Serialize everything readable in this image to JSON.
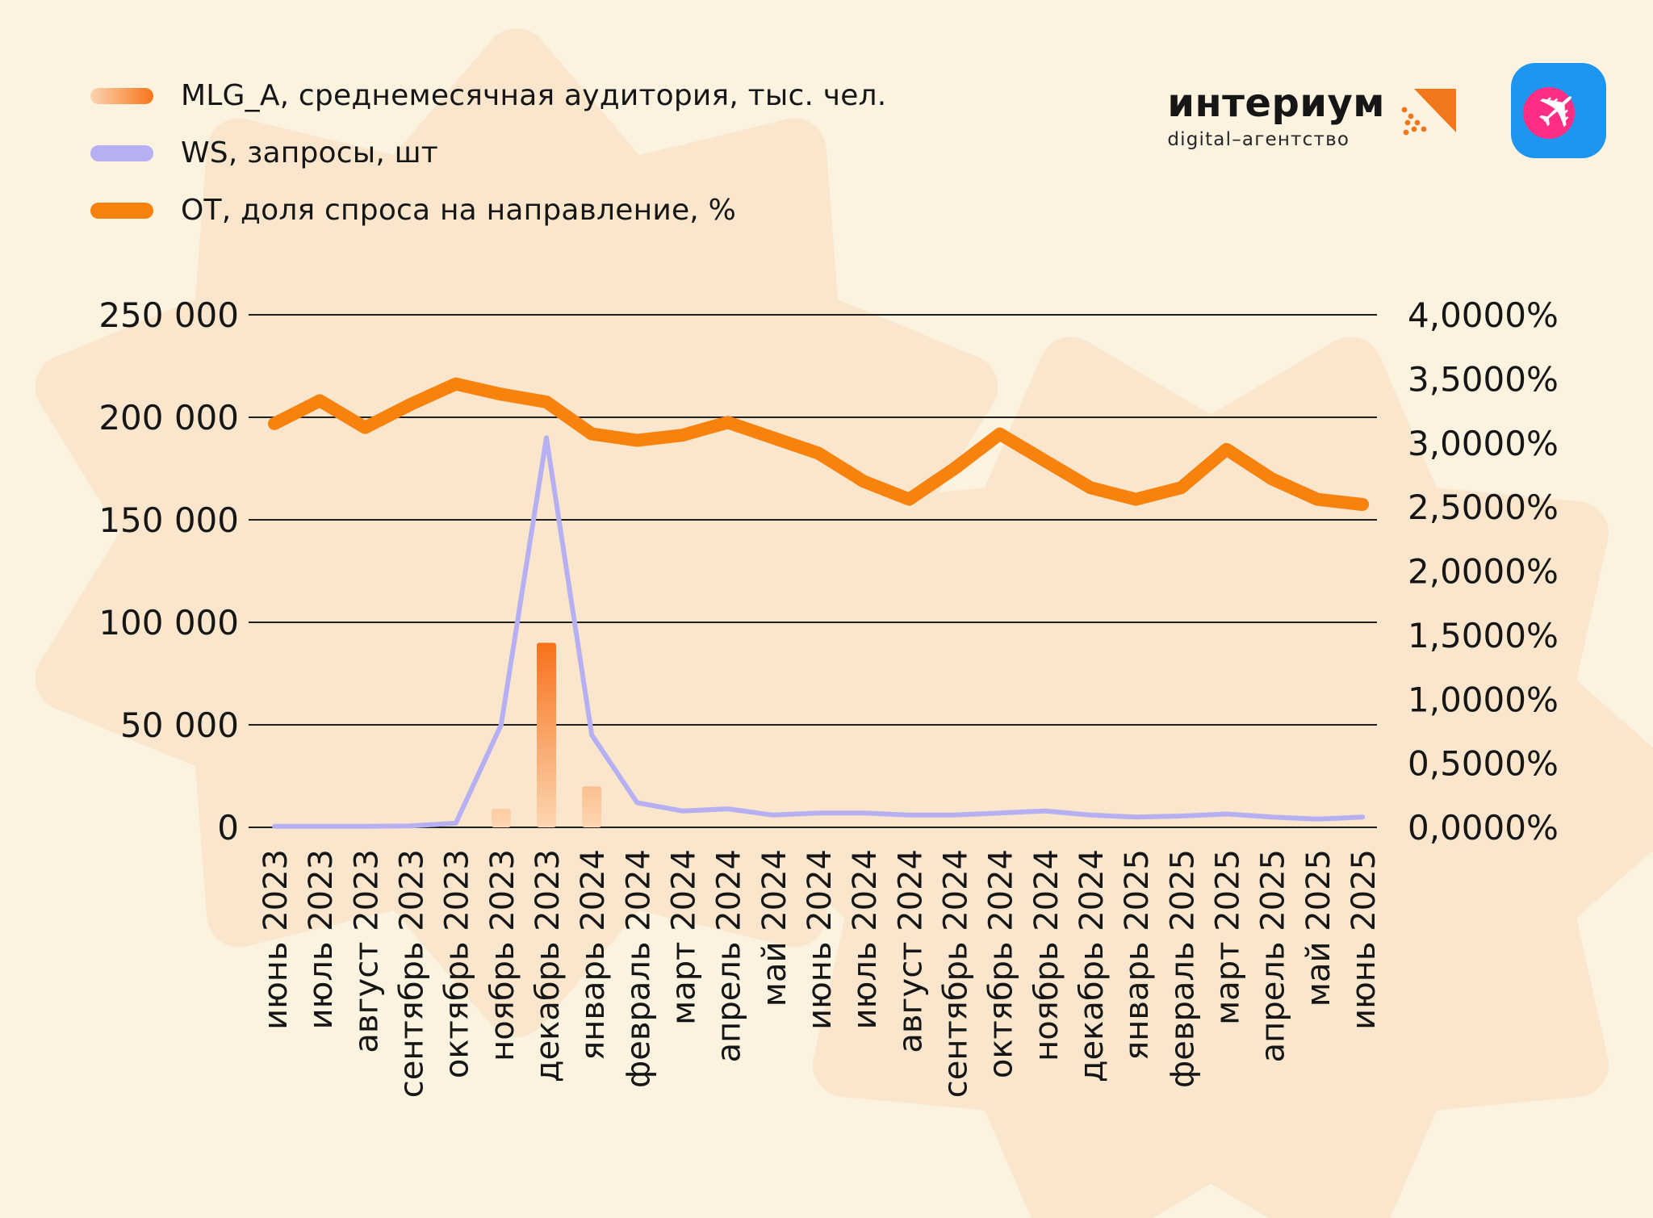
{
  "page": {
    "background": "#fcf2e0",
    "blob_color": "#f9e6cc"
  },
  "header": {
    "legend": [
      {
        "key": "mlg_a",
        "label": "MLG_A, среднемесячная аудитория, тыс. чел.",
        "swatch": "gradient",
        "colors": [
          "#fbd4b2",
          "#f8751a"
        ]
      },
      {
        "key": "ws",
        "label": "WS, запросы, шт",
        "swatch": "solid",
        "colors": [
          "#b6b0f2"
        ]
      },
      {
        "key": "ot",
        "label": "ОТ, доля спроса на направление, %",
        "swatch": "solid",
        "colors": [
          "#f8820e"
        ]
      }
    ],
    "logo": {
      "title": "интериум",
      "subtitle": "digital–агентство",
      "mark_color": "#f2761b"
    },
    "app_icon": {
      "name": "travel-app-icon",
      "background": "#1e96f0",
      "circle": "#ff2e84",
      "plane": "#ffffff"
    }
  },
  "chart_data": {
    "type": "combo",
    "categories": [
      "июнь 2023",
      "июль 2023",
      "август 2023",
      "сентябрь 2023",
      "октябрь 2023",
      "ноябрь 2023",
      "декабрь 2023",
      "январь 2024",
      "февраль 2024",
      "март 2024",
      "апрель 2024",
      "май 2024",
      "июнь 2024",
      "июль 2024",
      "август 2024",
      "сентябрь 2024",
      "октябрь 2024",
      "ноябрь 2024",
      "декабрь 2024",
      "январь 2025",
      "февраль 2025",
      "март 2025",
      "апрель 2025",
      "май 2025",
      "июнь 2025"
    ],
    "series": [
      {
        "name": "MLG_A, среднемесячная аудитория, тыс. чел.",
        "type": "bar",
        "axis": "left",
        "color_top": "#f86c12",
        "color_bottom": "#fcd6b2",
        "values": [
          0,
          0,
          0,
          0,
          0,
          9000,
          90000,
          20000,
          0,
          0,
          0,
          0,
          0,
          0,
          0,
          0,
          0,
          0,
          0,
          0,
          0,
          0,
          0,
          0,
          0
        ]
      },
      {
        "name": "WS, запросы, шт",
        "type": "line",
        "axis": "left",
        "color": "#b6b0f2",
        "values": [
          500,
          500,
          500,
          700,
          2000,
          50000,
          190000,
          45000,
          12000,
          8000,
          9000,
          6000,
          7000,
          7000,
          6000,
          6000,
          7000,
          8000,
          6000,
          5000,
          5500,
          6500,
          5000,
          4000,
          5000
        ]
      },
      {
        "name": "ОТ, доля спроса на направление, %",
        "type": "line",
        "axis": "right",
        "color": "#f8820e",
        "values": [
          3.15,
          3.33,
          3.12,
          3.3,
          3.46,
          3.38,
          3.32,
          3.07,
          3.02,
          3.06,
          3.16,
          3.04,
          2.92,
          2.7,
          2.56,
          2.8,
          3.07,
          2.86,
          2.65,
          2.56,
          2.65,
          2.95,
          2.72,
          2.56,
          2.52
        ]
      }
    ],
    "left_axis": {
      "min": 0,
      "max": 250000,
      "tick_labels": [
        "250 000",
        "200 000",
        "150 000",
        "100 000",
        "50 000",
        "0"
      ]
    },
    "right_axis": {
      "min": 0,
      "max": 4,
      "tick_labels": [
        "4,0000%",
        "3,5000%",
        "3,0000%",
        "2,5000%",
        "2,0000%",
        "1,5000%",
        "1,0000%",
        "0,5000%",
        "0,0000%"
      ]
    },
    "grid": true,
    "legend_position": "top-left"
  }
}
